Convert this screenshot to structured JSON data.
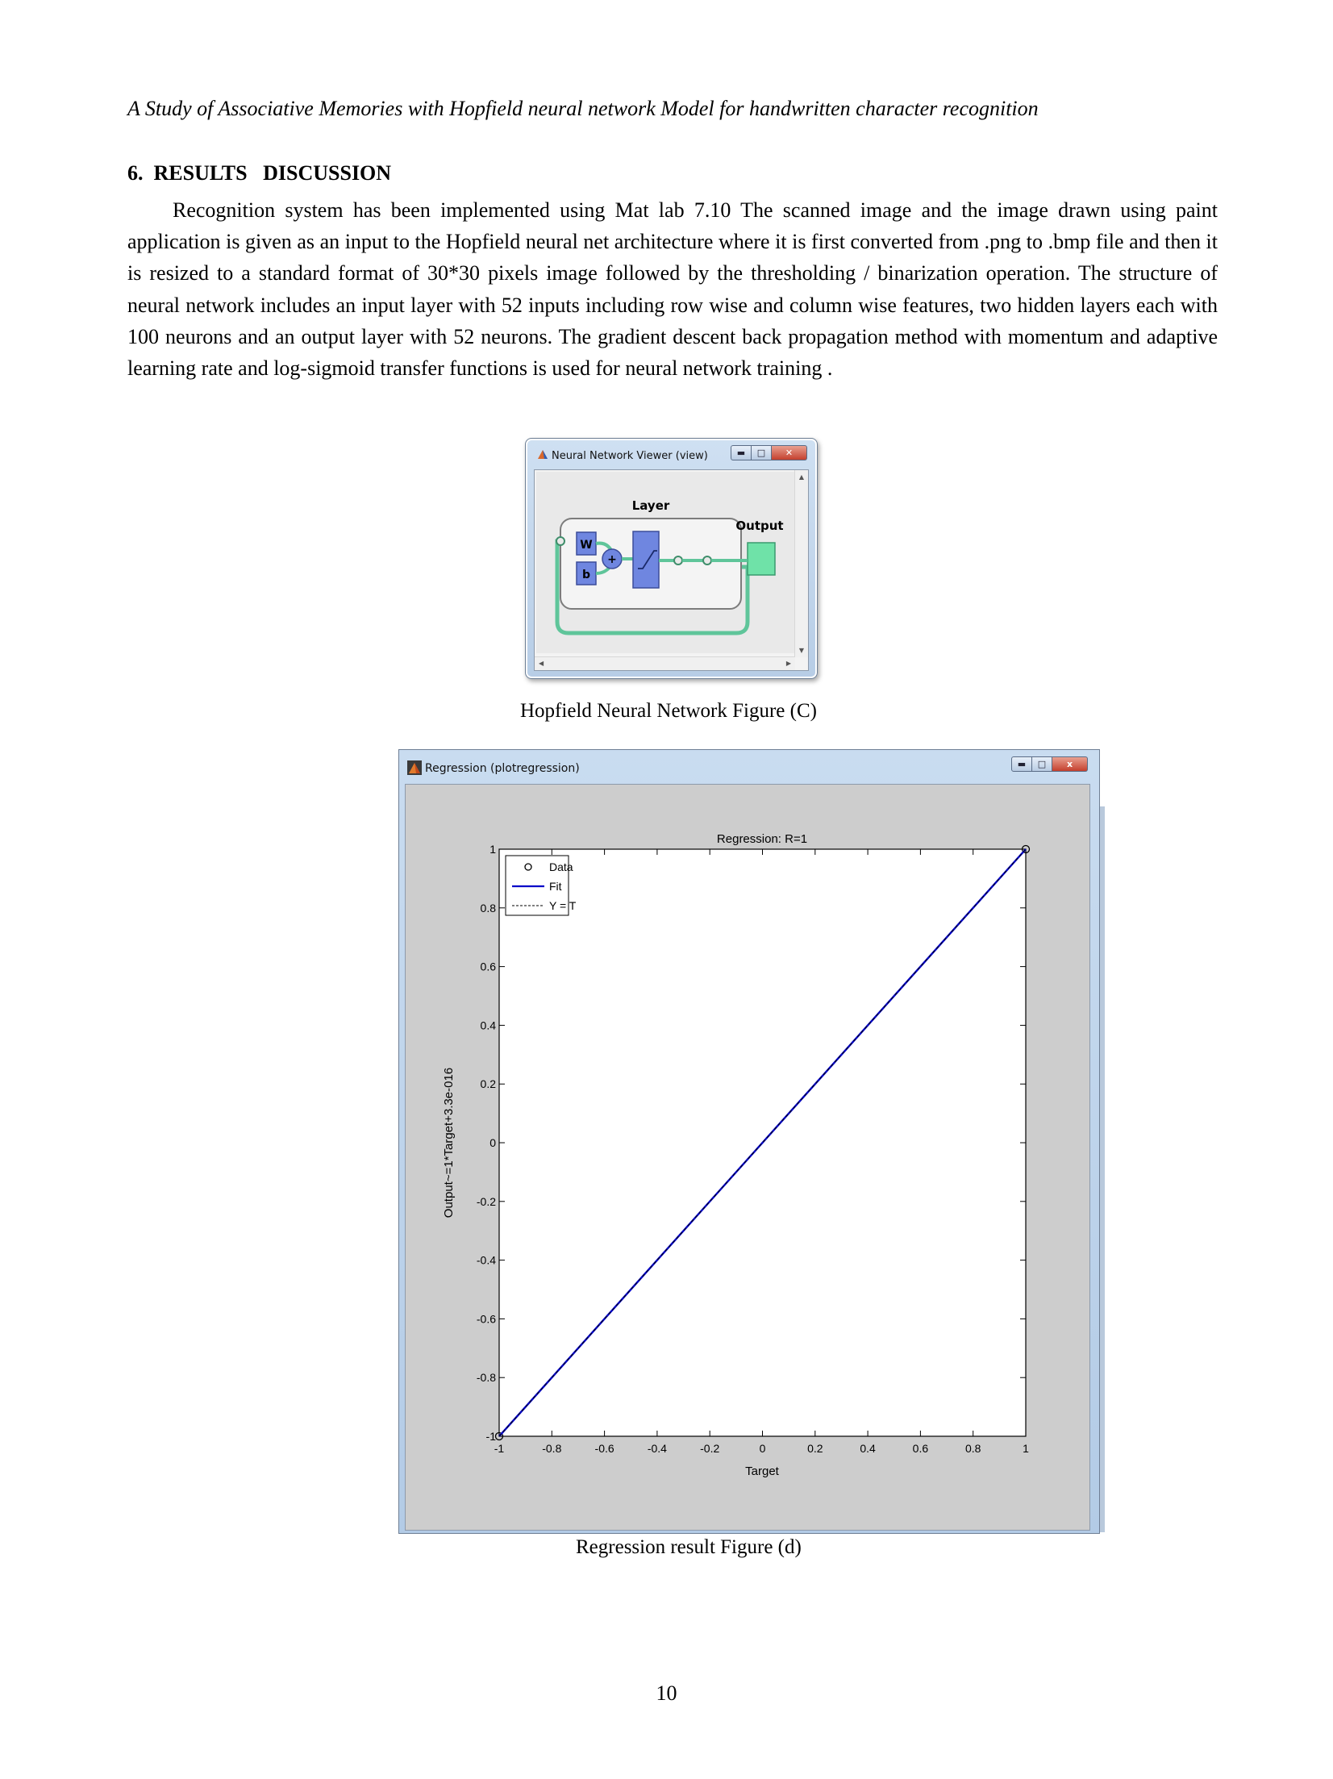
{
  "header": {
    "running_title": "A Study of Associative Memories with Hopfield neural network Model for handwritten character recognition"
  },
  "section": {
    "heading": "6.  RESULTS   DISCUSSION",
    "paragraph": "Recognition system has been implemented using Mat lab 7.10 The scanned image and the image drawn using paint application is given as an input to the Hopfield neural net architecture where it is first converted from .png to .bmp file and then it is resized to a standard format of 30*30 pixels image followed by the thresholding / binarization operation. The structure of neural network includes an input layer with 52 inputs including row wise and column wise features, two hidden layers each with 100 neurons and an output layer with 52 neurons. The gradient descent back propagation method with momentum and adaptive learning rate and log-sigmoid transfer functions is used for neural network training ."
  },
  "figure_c": {
    "window_title": "Neural Network Viewer (view)",
    "layer_label": "Layer",
    "output_label": "Output",
    "weight_label": "W",
    "bias_label": "b",
    "sum_label": "+",
    "caption": "Hopfield Neural Network Figure (C)",
    "colors": {
      "block": "#6f86e0",
      "output_block": "#6fe2a8",
      "wire": "#5fc59a"
    },
    "icons": [
      "matlab-icon",
      "minimize-icon",
      "maximize-icon",
      "close-icon"
    ]
  },
  "figure_d": {
    "window_title": "Regression (plotregression)",
    "caption": "Regression result Figure (d)",
    "window_buttons": {
      "close": "x"
    }
  },
  "chart_data": {
    "type": "line",
    "title": "Regression: R=1",
    "xlabel": "Target",
    "ylabel": "Output~=1*Target+3.3e-016",
    "xlim": [
      -1,
      1
    ],
    "ylim": [
      -1,
      1
    ],
    "x_ticks": [
      "-1",
      "-0.8",
      "-0.6",
      "-0.4",
      "-0.2",
      "0",
      "0.2",
      "0.4",
      "0.6",
      "0.8",
      "1"
    ],
    "y_ticks": [
      "-1",
      "-0.8",
      "-0.6",
      "-0.4",
      "-0.2",
      "0",
      "0.2",
      "0.4",
      "0.6",
      "0.8",
      "1"
    ],
    "grid": false,
    "legend_position": "top-left",
    "legend": [
      "Data",
      "Fit",
      "Y = T"
    ],
    "series": [
      {
        "name": "Data",
        "style": "circle-marker",
        "color": "#000000",
        "x": [
          -1,
          1
        ],
        "y": [
          -1,
          1
        ]
      },
      {
        "name": "Fit",
        "style": "solid",
        "color": "#0000c8",
        "x": [
          -1,
          1
        ],
        "y": [
          -1,
          1
        ]
      },
      {
        "name": "Y = T",
        "style": "dashed",
        "color": "#000000",
        "x": [
          -1,
          1
        ],
        "y": [
          -1,
          1
        ]
      }
    ]
  },
  "footer": {
    "page_number": "10"
  }
}
